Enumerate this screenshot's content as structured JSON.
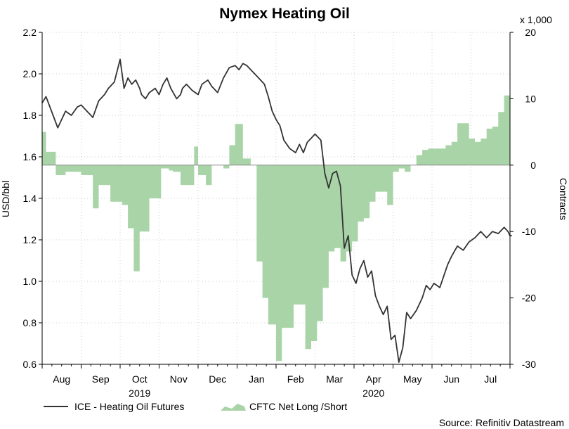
{
  "chart_data": {
    "type": "line",
    "title": "Nymex Heating Oil",
    "ylabel_left": "USD/bbl",
    "ylabel_right": "Contracts",
    "right_multiplier": "x 1,000",
    "ylim_left": [
      0.6,
      2.2
    ],
    "yticks_left": [
      "0.6",
      "0.8",
      "1.0",
      "1.2",
      "1.4",
      "1.6",
      "1.8",
      "2.0",
      "2.2"
    ],
    "ylim_right": [
      -30,
      20
    ],
    "yticks_right": [
      "-30",
      "-20",
      "-10",
      "0",
      "10",
      "20"
    ],
    "months": [
      "Aug",
      "Sep",
      "Oct",
      "Nov",
      "Dec",
      "Jan",
      "Feb",
      "Mar",
      "Apr",
      "May",
      "Jun",
      "Jul"
    ],
    "years": [
      {
        "label": "2019",
        "month_index": 2.5
      },
      {
        "label": "2020",
        "month_index": 8.5
      }
    ],
    "grid": true,
    "legend_position": "bottom-left",
    "source": "Source: Refinitiv Datastream",
    "series": [
      {
        "name": "ICE - Heating Oil Futures",
        "kind": "line",
        "axis": "left",
        "color": "#333333",
        "x": [
          0.0,
          0.1,
          0.2,
          0.3,
          0.4,
          0.5,
          0.6,
          0.75,
          0.9,
          1.0,
          1.15,
          1.3,
          1.45,
          1.6,
          1.7,
          1.85,
          2.0,
          2.1,
          2.2,
          2.3,
          2.4,
          2.5,
          2.55,
          2.65,
          2.75,
          2.9,
          3.0,
          3.1,
          3.2,
          3.3,
          3.45,
          3.55,
          3.6,
          3.7,
          3.85,
          4.0,
          4.1,
          4.25,
          4.35,
          4.5,
          4.65,
          4.8,
          4.95,
          5.05,
          5.15,
          5.25,
          5.35,
          5.5,
          5.7,
          5.8,
          5.9,
          6.0,
          6.1,
          6.2,
          6.35,
          6.5,
          6.6,
          6.7,
          6.8,
          6.9,
          7.0,
          7.15,
          7.25,
          7.35,
          7.45,
          7.55,
          7.65,
          7.75,
          7.85,
          7.95,
          8.05,
          8.15,
          8.25,
          8.35,
          8.45,
          8.55,
          8.65,
          8.75,
          8.85,
          8.95,
          9.05,
          9.15,
          9.25,
          9.35,
          9.45,
          9.6,
          9.75,
          9.85,
          9.95,
          10.05,
          10.2,
          10.4,
          10.5,
          10.65,
          10.8,
          10.95,
          11.1,
          11.25,
          11.4,
          11.55,
          11.7,
          11.85,
          11.95,
          12.0,
          12.05
        ],
        "y": [
          1.86,
          1.89,
          1.84,
          1.79,
          1.74,
          1.78,
          1.82,
          1.8,
          1.84,
          1.85,
          1.82,
          1.79,
          1.87,
          1.9,
          1.93,
          1.96,
          2.07,
          1.93,
          1.98,
          1.95,
          1.97,
          1.93,
          1.9,
          1.88,
          1.91,
          1.93,
          1.9,
          1.95,
          1.98,
          1.93,
          1.88,
          1.9,
          1.93,
          1.95,
          1.92,
          1.9,
          1.95,
          1.97,
          1.94,
          1.91,
          1.98,
          2.03,
          2.04,
          2.02,
          2.05,
          2.04,
          2.02,
          1.99,
          1.95,
          1.89,
          1.82,
          1.78,
          1.75,
          1.68,
          1.64,
          1.62,
          1.66,
          1.62,
          1.67,
          1.69,
          1.71,
          1.68,
          1.52,
          1.45,
          1.52,
          1.53,
          1.46,
          1.16,
          1.22,
          1.03,
          0.99,
          1.06,
          1.1,
          1.02,
          1.05,
          0.93,
          0.88,
          0.84,
          0.88,
          0.72,
          0.74,
          0.61,
          0.68,
          0.85,
          0.82,
          0.86,
          0.92,
          0.98,
          0.96,
          0.99,
          0.97,
          1.08,
          1.12,
          1.17,
          1.15,
          1.19,
          1.21,
          1.24,
          1.21,
          1.24,
          1.23,
          1.26,
          1.24,
          1.22,
          1.22
        ]
      },
      {
        "name": "CFTC Net Long /Short",
        "kind": "area",
        "axis": "right",
        "color": "#a8d4a8",
        "x": [
          0.0,
          0.1,
          0.2,
          0.35,
          0.45,
          0.6,
          0.8,
          1.0,
          1.15,
          1.3,
          1.45,
          1.6,
          1.75,
          1.9,
          2.05,
          2.2,
          2.35,
          2.5,
          2.6,
          2.75,
          2.9,
          3.05,
          3.25,
          3.35,
          3.55,
          3.75,
          3.9,
          4.0,
          4.2,
          4.35,
          4.5,
          4.65,
          4.8,
          4.95,
          5.05,
          5.15,
          5.25,
          5.35,
          5.5,
          5.65,
          5.8,
          6.0,
          6.15,
          6.3,
          6.45,
          6.6,
          6.75,
          6.9,
          7.05,
          7.2,
          7.35,
          7.5,
          7.65,
          7.8,
          7.95,
          8.1,
          8.25,
          8.4,
          8.55,
          8.7,
          8.85,
          9.0,
          9.15,
          9.3,
          9.45,
          9.6,
          9.75,
          9.9,
          10.05,
          10.2,
          10.35,
          10.5,
          10.65,
          10.8,
          10.95,
          11.1,
          11.25,
          11.4,
          11.55,
          11.7,
          11.85,
          12.0,
          12.1
        ],
        "y": [
          5,
          2,
          2,
          -1.5,
          -1.5,
          -1,
          -1,
          -1.5,
          -1.5,
          -6.5,
          -3,
          -3,
          -5.5,
          -5.5,
          -6,
          -9.5,
          -16,
          -10,
          -10,
          -5,
          -5,
          -0.5,
          -0.8,
          -1,
          -3,
          -3,
          2.8,
          -1.5,
          -3,
          0,
          0,
          -0.5,
          3,
          6.2,
          6.2,
          1,
          1,
          0,
          -14.5,
          -20,
          -24,
          -29.5,
          -24.5,
          -24.5,
          -21,
          -21,
          -27.7,
          -26.5,
          -23.5,
          -18.5,
          -13,
          -12.5,
          -14.5,
          -13,
          -11.5,
          -8.5,
          -8,
          -5.5,
          -4,
          -4,
          -6,
          -1,
          -0.5,
          -1,
          0,
          1.5,
          2.3,
          2.5,
          2.5,
          2.5,
          3,
          3.5,
          6.3,
          6.3,
          4,
          3.5,
          4,
          5.5,
          5.8,
          8,
          10.5,
          10.5,
          10.5
        ]
      }
    ]
  }
}
